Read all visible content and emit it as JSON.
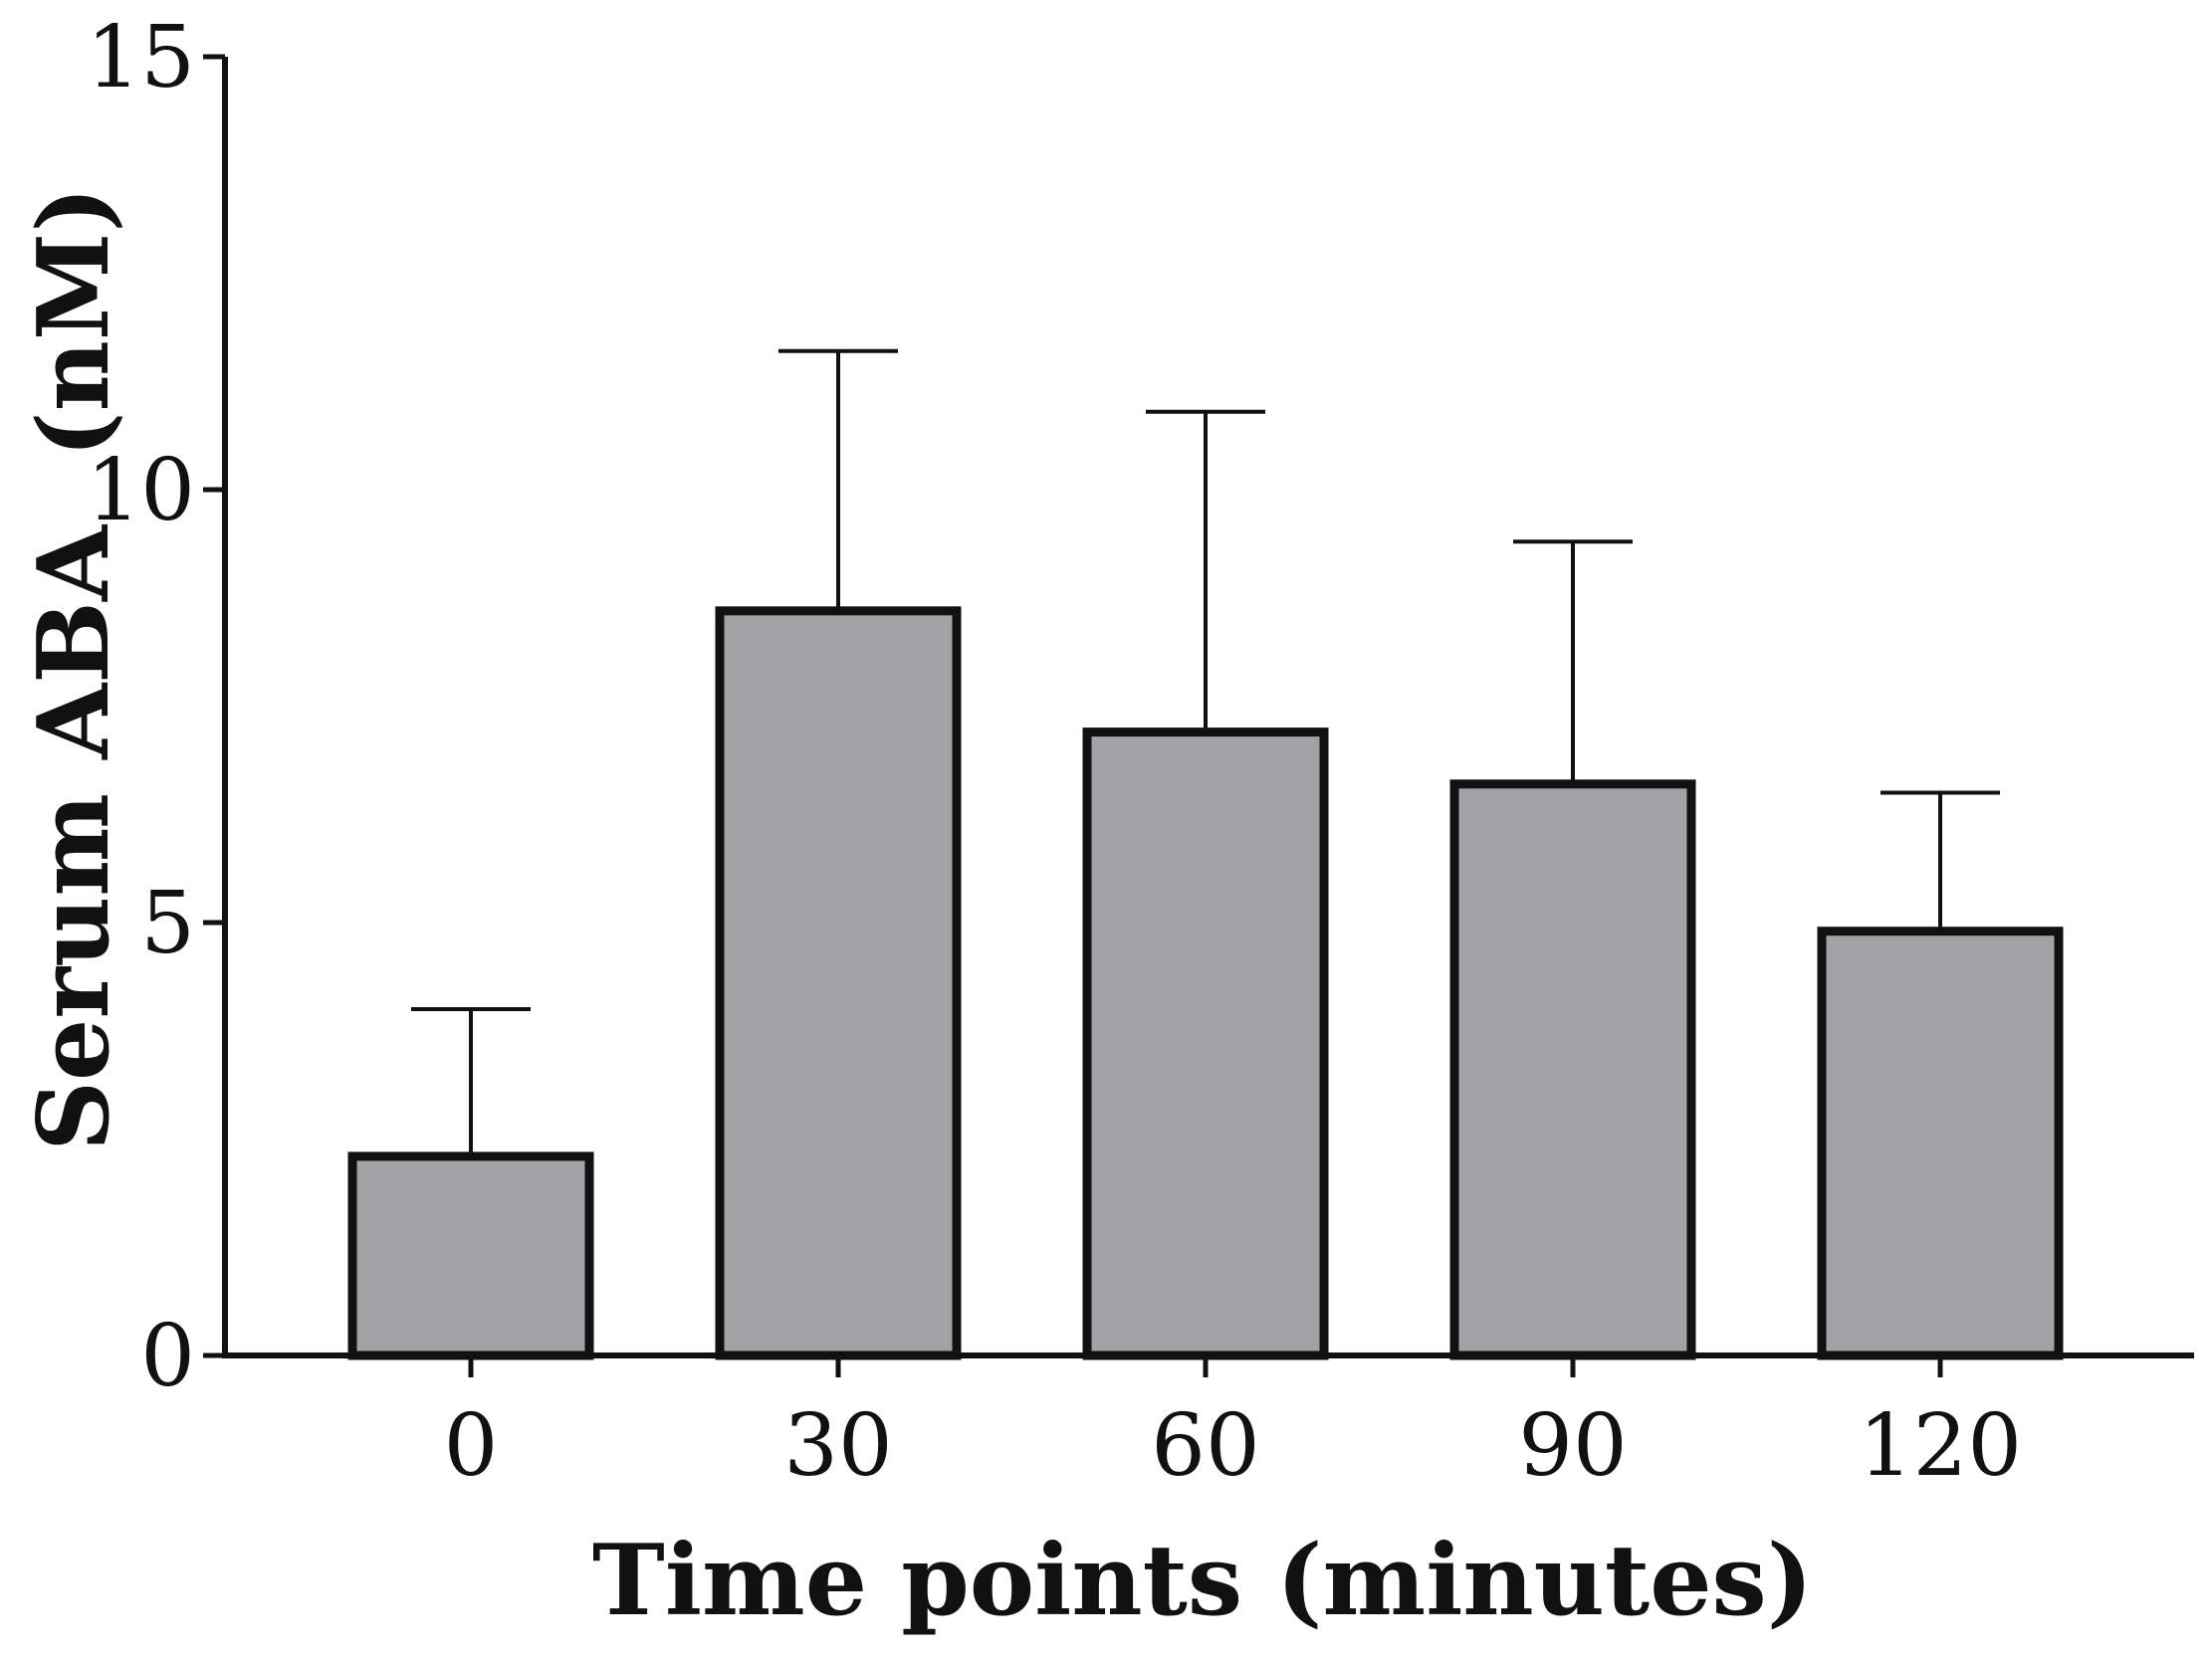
{
  "chart_data": {
    "type": "bar",
    "categories": [
      "0",
      "30",
      "60",
      "90",
      "120"
    ],
    "values": [
      2.3,
      8.6,
      7.2,
      6.6,
      4.9
    ],
    "error_upper": [
      4.0,
      11.6,
      10.9,
      9.4,
      6.5
    ],
    "xlabel": "Time points (minutes)",
    "ylabel": "Serum ABA  (nM)",
    "ylim": [
      0,
      15
    ],
    "yticks": [
      "0",
      "5",
      "10",
      "15"
    ],
    "grid": false,
    "colors": {
      "bar_fill": "#a2a2a6",
      "bar_stroke": "#111111",
      "axis": "#111111"
    }
  }
}
